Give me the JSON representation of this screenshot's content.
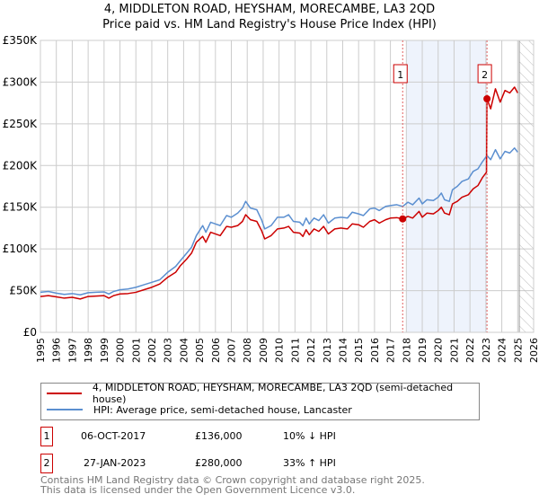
{
  "chart_data": {
    "type": "line",
    "title": "4, MIDDLETON ROAD, HEYSHAM, MORECAMBE, LA3 2QD",
    "subtitle": "Price paid vs. HM Land Registry's House Price Index (HPI)",
    "xlim": [
      1995,
      2026
    ],
    "ylim": [
      0,
      350000
    ],
    "y_ticks": [
      {
        "v": 0,
        "label": "£0"
      },
      {
        "v": 50000,
        "label": "£50K"
      },
      {
        "v": 100000,
        "label": "£100K"
      },
      {
        "v": 150000,
        "label": "£150K"
      },
      {
        "v": 200000,
        "label": "£200K"
      },
      {
        "v": 250000,
        "label": "£250K"
      },
      {
        "v": 300000,
        "label": "£300K"
      },
      {
        "v": 350000,
        "label": "£350K"
      }
    ],
    "x_ticks": [
      "1995",
      "1996",
      "1997",
      "1998",
      "1999",
      "2000",
      "2001",
      "2002",
      "2003",
      "2004",
      "2005",
      "2006",
      "2007",
      "2008",
      "2009",
      "2010",
      "2011",
      "2012",
      "2013",
      "2014",
      "2015",
      "2016",
      "2017",
      "2018",
      "2019",
      "2020",
      "2021",
      "2022",
      "2023",
      "2024",
      "2025",
      "2026"
    ],
    "grid": true,
    "shaded_range": [
      2018.0,
      2023.07
    ],
    "forecast_hatch_from": 2025.1,
    "series": [
      {
        "name": "4, MIDDLETON ROAD, HEYSHAM, MORECAMBE, LA3 2QD (semi-detached house)",
        "color": "#cc0000",
        "points": [
          [
            1995,
            43000
          ],
          [
            1995.5,
            44000
          ],
          [
            1996,
            42500
          ],
          [
            1996.5,
            41000
          ],
          [
            1997,
            42000
          ],
          [
            1997.5,
            40000
          ],
          [
            1998,
            43000
          ],
          [
            1998.5,
            43500
          ],
          [
            1999,
            44000
          ],
          [
            1999.3,
            41000
          ],
          [
            1999.6,
            44000
          ],
          [
            2000,
            46000
          ],
          [
            2000.5,
            46500
          ],
          [
            2001,
            48000
          ],
          [
            2001.5,
            51000
          ],
          [
            2002,
            54000
          ],
          [
            2002.5,
            58000
          ],
          [
            2003,
            66000
          ],
          [
            2003.5,
            72000
          ],
          [
            2003.8,
            80000
          ],
          [
            2004.2,
            88000
          ],
          [
            2004.5,
            95000
          ],
          [
            2004.8,
            108000
          ],
          [
            2005.2,
            115000
          ],
          [
            2005.4,
            108000
          ],
          [
            2005.7,
            120000
          ],
          [
            2006,
            118000
          ],
          [
            2006.3,
            116000
          ],
          [
            2006.7,
            127000
          ],
          [
            2007,
            126000
          ],
          [
            2007.4,
            128000
          ],
          [
            2007.7,
            133000
          ],
          [
            2007.9,
            141000
          ],
          [
            2008.2,
            135000
          ],
          [
            2008.6,
            133000
          ],
          [
            2008.9,
            122000
          ],
          [
            2009.1,
            112000
          ],
          [
            2009.5,
            116000
          ],
          [
            2009.9,
            124000
          ],
          [
            2010.3,
            125000
          ],
          [
            2010.6,
            127000
          ],
          [
            2010.9,
            120000
          ],
          [
            2011.3,
            119000
          ],
          [
            2011.5,
            115000
          ],
          [
            2011.7,
            123000
          ],
          [
            2011.9,
            117000
          ],
          [
            2012.2,
            124000
          ],
          [
            2012.5,
            121000
          ],
          [
            2012.8,
            127000
          ],
          [
            2013.1,
            118000
          ],
          [
            2013.5,
            124000
          ],
          [
            2013.9,
            125000
          ],
          [
            2014.3,
            124000
          ],
          [
            2014.6,
            130000
          ],
          [
            2015,
            129000
          ],
          [
            2015.3,
            126000
          ],
          [
            2015.7,
            133000
          ],
          [
            2016,
            135000
          ],
          [
            2016.3,
            131000
          ],
          [
            2016.7,
            135000
          ],
          [
            2017,
            137000
          ],
          [
            2017.4,
            137500
          ],
          [
            2017.77,
            136000
          ],
          [
            2018.1,
            139000
          ],
          [
            2018.4,
            137000
          ],
          [
            2018.8,
            145000
          ],
          [
            2019,
            138000
          ],
          [
            2019.3,
            143000
          ],
          [
            2019.7,
            142000
          ],
          [
            2020,
            146000
          ],
          [
            2020.2,
            150000
          ],
          [
            2020.4,
            143000
          ],
          [
            2020.7,
            141000
          ],
          [
            2020.9,
            154000
          ],
          [
            2021.2,
            157000
          ],
          [
            2021.5,
            162000
          ],
          [
            2021.9,
            165000
          ],
          [
            2022.2,
            172000
          ],
          [
            2022.5,
            176000
          ],
          [
            2022.8,
            186000
          ],
          [
            2023.04,
            192000
          ],
          [
            2023.07,
            280000
          ],
          [
            2023.3,
            268000
          ],
          [
            2023.6,
            292000
          ],
          [
            2023.9,
            276000
          ],
          [
            2024.2,
            290000
          ],
          [
            2024.5,
            287000
          ],
          [
            2024.8,
            294000
          ],
          [
            2025.0,
            287000
          ]
        ]
      },
      {
        "name": "HPI: Average price, semi-detached house, Lancaster",
        "color": "#5b8fd0",
        "points": [
          [
            1995,
            48000
          ],
          [
            1995.5,
            49000
          ],
          [
            1996,
            47000
          ],
          [
            1996.5,
            45500
          ],
          [
            1997,
            46500
          ],
          [
            1997.5,
            45000
          ],
          [
            1998,
            47500
          ],
          [
            1998.5,
            48000
          ],
          [
            1999,
            48500
          ],
          [
            1999.3,
            46000
          ],
          [
            1999.6,
            49000
          ],
          [
            2000,
            51000
          ],
          [
            2000.5,
            52000
          ],
          [
            2001,
            54000
          ],
          [
            2001.5,
            57000
          ],
          [
            2002,
            60000
          ],
          [
            2002.5,
            63000
          ],
          [
            2003,
            72000
          ],
          [
            2003.5,
            79000
          ],
          [
            2003.8,
            86000
          ],
          [
            2004.2,
            95000
          ],
          [
            2004.5,
            102000
          ],
          [
            2004.8,
            116000
          ],
          [
            2005.2,
            128000
          ],
          [
            2005.4,
            120000
          ],
          [
            2005.7,
            132000
          ],
          [
            2006,
            130000
          ],
          [
            2006.3,
            128000
          ],
          [
            2006.7,
            140000
          ],
          [
            2007,
            138000
          ],
          [
            2007.4,
            143000
          ],
          [
            2007.7,
            149000
          ],
          [
            2007.9,
            157000
          ],
          [
            2008.2,
            149000
          ],
          [
            2008.6,
            147000
          ],
          [
            2008.9,
            135000
          ],
          [
            2009.1,
            124000
          ],
          [
            2009.5,
            128000
          ],
          [
            2009.9,
            138000
          ],
          [
            2010.3,
            138000
          ],
          [
            2010.6,
            141000
          ],
          [
            2010.9,
            133000
          ],
          [
            2011.3,
            132000
          ],
          [
            2011.5,
            128000
          ],
          [
            2011.7,
            137000
          ],
          [
            2011.9,
            130000
          ],
          [
            2012.2,
            137000
          ],
          [
            2012.5,
            134000
          ],
          [
            2012.8,
            141000
          ],
          [
            2013.1,
            131000
          ],
          [
            2013.5,
            137000
          ],
          [
            2013.9,
            138000
          ],
          [
            2014.3,
            137000
          ],
          [
            2014.6,
            144000
          ],
          [
            2015,
            142000
          ],
          [
            2015.3,
            140000
          ],
          [
            2015.7,
            148000
          ],
          [
            2016,
            149000
          ],
          [
            2016.3,
            146000
          ],
          [
            2016.7,
            151000
          ],
          [
            2017,
            152000
          ],
          [
            2017.4,
            153000
          ],
          [
            2017.77,
            151000
          ],
          [
            2018.1,
            156000
          ],
          [
            2018.4,
            153000
          ],
          [
            2018.8,
            161000
          ],
          [
            2019,
            154000
          ],
          [
            2019.3,
            159000
          ],
          [
            2019.7,
            158000
          ],
          [
            2020,
            162000
          ],
          [
            2020.2,
            167000
          ],
          [
            2020.4,
            159000
          ],
          [
            2020.7,
            157000
          ],
          [
            2020.9,
            171000
          ],
          [
            2021.2,
            175000
          ],
          [
            2021.5,
            181000
          ],
          [
            2021.9,
            184000
          ],
          [
            2022.2,
            193000
          ],
          [
            2022.5,
            196000
          ],
          [
            2022.8,
            205000
          ],
          [
            2023.07,
            212000
          ],
          [
            2023.3,
            207000
          ],
          [
            2023.6,
            219000
          ],
          [
            2023.9,
            208000
          ],
          [
            2024.2,
            217000
          ],
          [
            2024.5,
            215000
          ],
          [
            2024.8,
            221000
          ],
          [
            2025.0,
            216000
          ]
        ]
      }
    ],
    "sales": [
      {
        "id": "1",
        "year": 2017.77,
        "value": 136000,
        "date": "06-OCT-2017",
        "price": "£136,000",
        "hpi_diff": "10% ↓ HPI"
      },
      {
        "id": "2",
        "year": 2023.07,
        "value": 280000,
        "date": "27-JAN-2023",
        "price": "£280,000",
        "hpi_diff": "33% ↑ HPI"
      }
    ]
  },
  "legend": {
    "price_label": "4, MIDDLETON ROAD, HEYSHAM, MORECAMBE, LA3 2QD (semi-detached house)",
    "hpi_label": "HPI: Average price, semi-detached house, Lancaster"
  },
  "footer": {
    "line1": "Contains HM Land Registry data © Crown copyright and database right 2025.",
    "line2": "This data is licensed under the Open Government Licence v3.0."
  }
}
